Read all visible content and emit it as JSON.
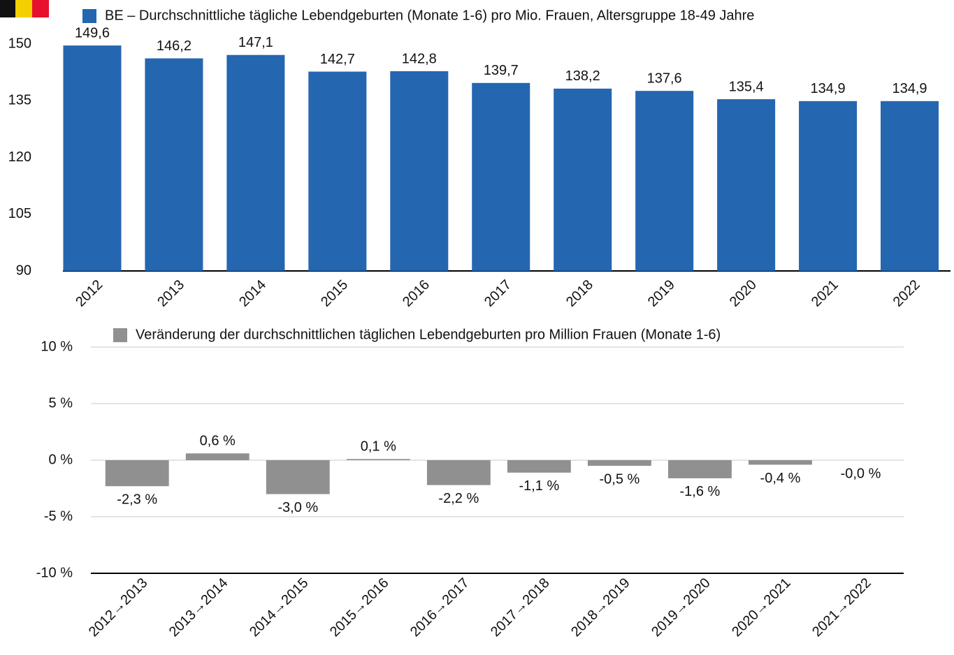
{
  "chart_data": [
    {
      "type": "bar",
      "categories": [
        "2012",
        "2013",
        "2014",
        "2015",
        "2016",
        "2017",
        "2018",
        "2019",
        "2020",
        "2021",
        "2022"
      ],
      "series": [
        {
          "name": "BE – Durchschnittliche tägliche Lebendgeburten (Monate 1-6) pro Mio. Frauen, Altersgruppe 18-49 Jahre",
          "color": "#2566b0",
          "values": [
            149.6,
            146.2,
            147.1,
            142.7,
            142.8,
            139.7,
            138.2,
            137.6,
            135.4,
            134.9,
            134.9
          ],
          "value_labels": [
            "149,6",
            "146,2",
            "147,1",
            "142,7",
            "142,8",
            "139,7",
            "138,2",
            "137,6",
            "135,4",
            "134,9",
            "134,9"
          ]
        }
      ],
      "ylim": [
        90,
        150
      ],
      "yticks": [
        90,
        105,
        120,
        135,
        150
      ],
      "grid": false
    },
    {
      "type": "bar",
      "categories": [
        "2012→2013",
        "2013→2014",
        "2014→2015",
        "2015→2016",
        "2016→2017",
        "2017→2018",
        "2018→2019",
        "2019→2020",
        "2020→2021",
        "2021→2022"
      ],
      "series": [
        {
          "name": "Veränderung der durchschnittlichen täglichen Lebendgeburten pro Million Frauen (Monate 1-6)",
          "color": "#909090",
          "values": [
            -2.3,
            0.6,
            -3.0,
            0.1,
            -2.2,
            -1.1,
            -0.5,
            -1.6,
            -0.4,
            -0.0
          ],
          "value_labels": [
            "-2,3 %",
            "0,6 %",
            "-3,0 %",
            "0,1 %",
            "-2,2 %",
            "-1,1 %",
            "-0,5 %",
            "-1,6 %",
            "-0,4 %",
            "-0,0 %"
          ]
        }
      ],
      "ylim": [
        -10,
        10
      ],
      "yticks": [
        {
          "value": -10,
          "label": "-10 %"
        },
        {
          "value": -5,
          "label": "-5 %"
        },
        {
          "value": 0,
          "label": "0 %"
        },
        {
          "value": 5,
          "label": "5 %"
        },
        {
          "value": 10,
          "label": "10 %"
        }
      ],
      "grid": true
    }
  ]
}
